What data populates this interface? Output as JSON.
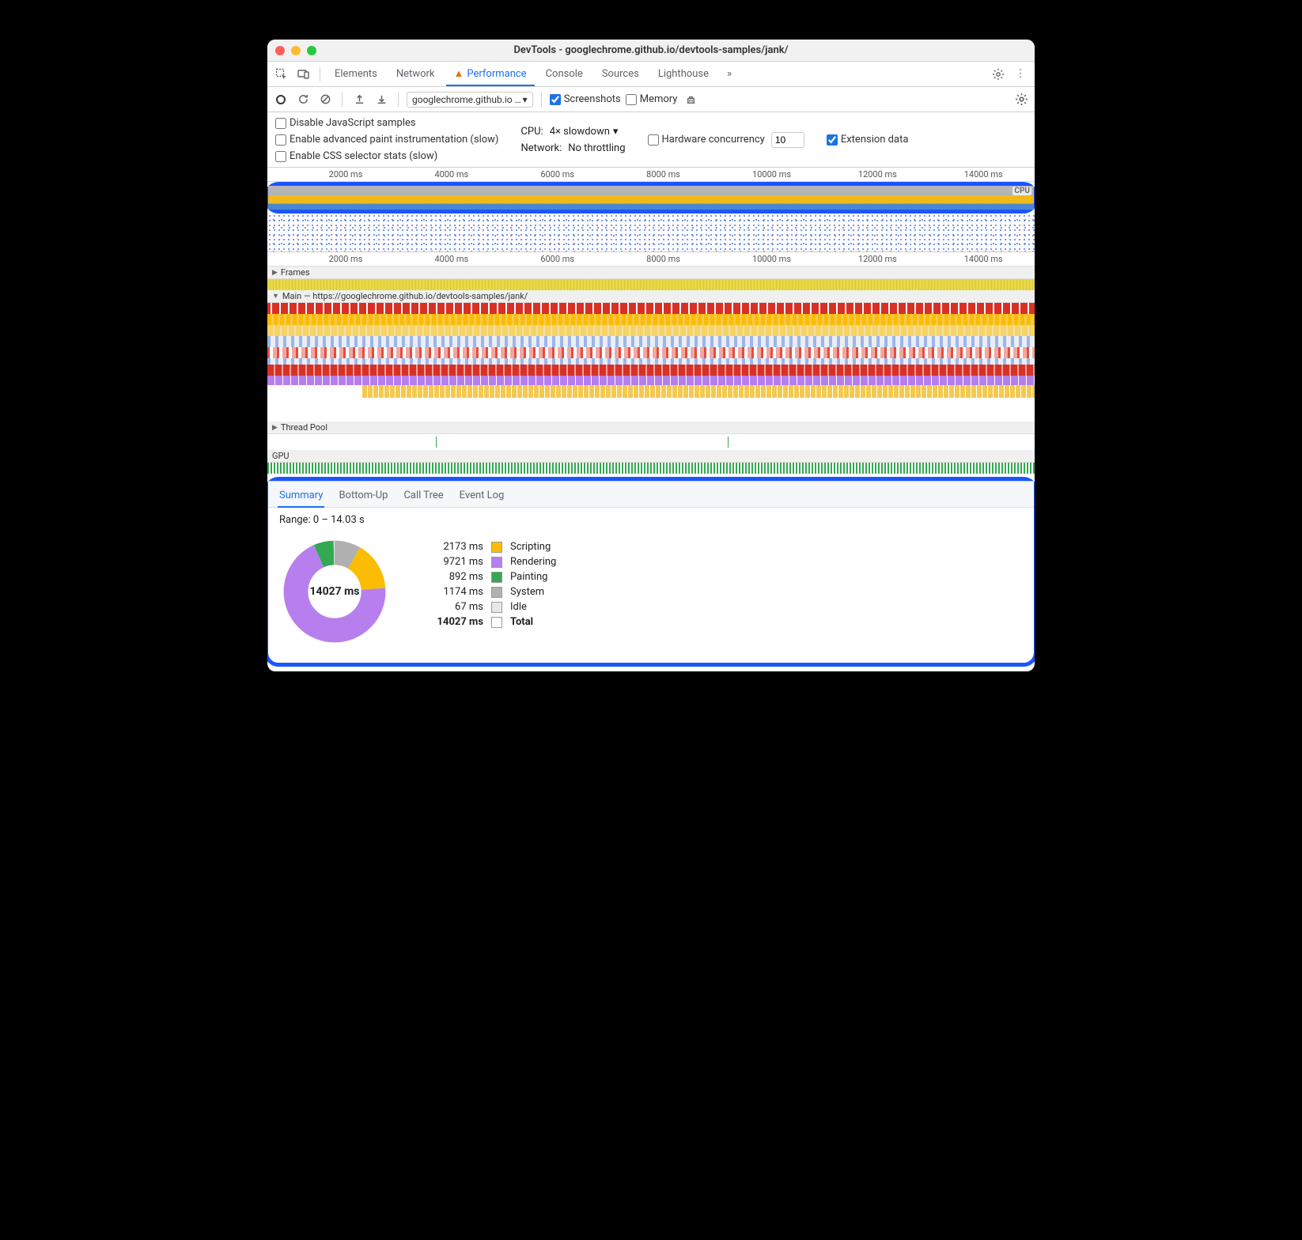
{
  "window": {
    "title": "DevTools - googlechrome.github.io/devtools-samples/jank/"
  },
  "tabs": {
    "elements": "Elements",
    "network": "Network",
    "performance": "Performance",
    "console": "Console",
    "sources": "Sources",
    "lighthouse": "Lighthouse"
  },
  "toolbar": {
    "url": "googlechrome.github.io …",
    "screenshots_label": "Screenshots",
    "screenshots_checked": true,
    "memory_label": "Memory",
    "memory_checked": false
  },
  "settings": {
    "disable_js_samples": "Disable JavaScript samples",
    "enable_paint_instr": "Enable advanced paint instrumentation (slow)",
    "enable_css_stats": "Enable CSS selector stats (slow)",
    "cpu_label": "CPU:",
    "cpu_value": "4× slowdown",
    "network_label": "Network:",
    "network_value": "No throttling",
    "hw_concurrency_label": "Hardware concurrency",
    "hw_concurrency_value": "10",
    "extension_data_label": "Extension data",
    "extension_data_checked": true
  },
  "overview": {
    "cpu_label": "CPU",
    "ticks": [
      "2000 ms",
      "4000 ms",
      "6000 ms",
      "8000 ms",
      "10000 ms",
      "12000 ms",
      "14000 ms"
    ]
  },
  "tracks": {
    "frames": "Frames",
    "main": "Main — https://googlechrome.github.io/devtools-samples/jank/",
    "threadpool": "Thread Pool",
    "gpu": "GPU"
  },
  "summary": {
    "tabs": {
      "summary": "Summary",
      "bottomup": "Bottom-Up",
      "calltree": "Call Tree",
      "eventlog": "Event Log"
    },
    "range": "Range: 0 – 14.03 s",
    "center": "14027 ms",
    "rows": [
      {
        "ms": "2173 ms",
        "label": "Scripting",
        "color": "#fbbc04",
        "val": 2173
      },
      {
        "ms": "9721 ms",
        "label": "Rendering",
        "color": "#b77fee",
        "val": 9721
      },
      {
        "ms": "892 ms",
        "label": "Painting",
        "color": "#34a853",
        "val": 892
      },
      {
        "ms": "1174 ms",
        "label": "System",
        "color": "#b0b0b0",
        "val": 1174
      },
      {
        "ms": "67 ms",
        "label": "Idle",
        "color": "#e8e8e8",
        "val": 67
      }
    ],
    "total": {
      "ms": "14027 ms",
      "label": "Total"
    }
  },
  "colors": {
    "accent": "#1a73e8",
    "highlight_border": "#1a56ff"
  }
}
